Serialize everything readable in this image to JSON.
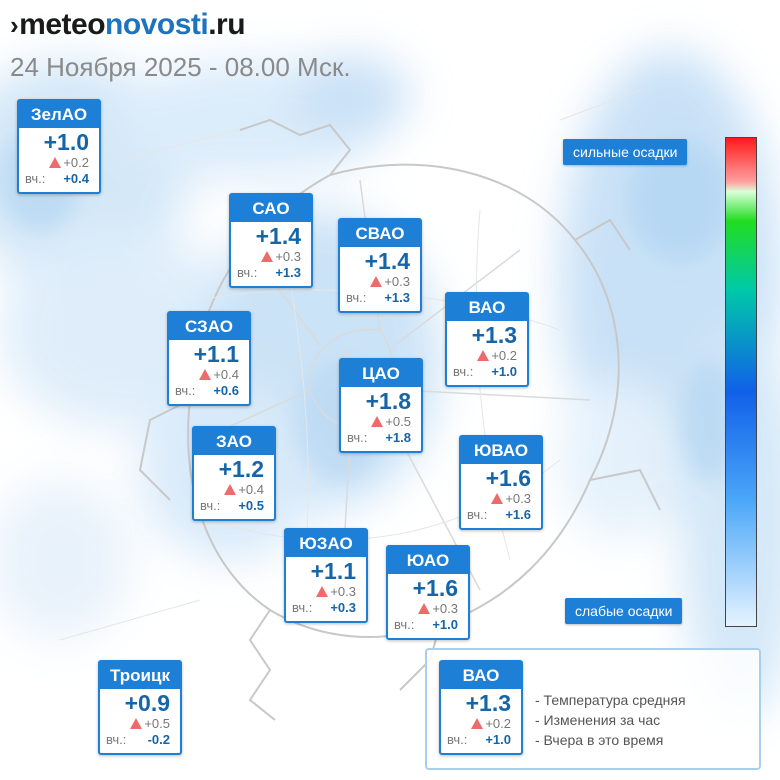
{
  "header": {
    "logo_part1": "meteo",
    "logo_part2": "novosti",
    "logo_part3": ".ru",
    "subtitle": "24 Ноября 2025 - 08.00 Мск."
  },
  "districts": [
    {
      "id": "zelao",
      "name": "ЗелАО",
      "temp": "+1.0",
      "change": "+0.2",
      "yesterday_label": "вч.:",
      "yesterday": "+0.4"
    },
    {
      "id": "sao",
      "name": "САО",
      "temp": "+1.4",
      "change": "+0.3",
      "yesterday_label": "вч.:",
      "yesterday": "+1.3"
    },
    {
      "id": "svao",
      "name": "СВАО",
      "temp": "+1.4",
      "change": "+0.3",
      "yesterday_label": "вч.:",
      "yesterday": "+1.3"
    },
    {
      "id": "vao",
      "name": "ВАО",
      "temp": "+1.3",
      "change": "+0.2",
      "yesterday_label": "вч.:",
      "yesterday": "+1.0"
    },
    {
      "id": "szao",
      "name": "СЗАО",
      "temp": "+1.1",
      "change": "+0.4",
      "yesterday_label": "вч.:",
      "yesterday": "+0.6"
    },
    {
      "id": "cao",
      "name": "ЦАО",
      "temp": "+1.8",
      "change": "+0.5",
      "yesterday_label": "вч.:",
      "yesterday": "+1.8"
    },
    {
      "id": "zao",
      "name": "ЗАО",
      "temp": "+1.2",
      "change": "+0.4",
      "yesterday_label": "вч.:",
      "yesterday": "+0.5"
    },
    {
      "id": "yuvao",
      "name": "ЮВАО",
      "temp": "+1.6",
      "change": "+0.3",
      "yesterday_label": "вч.:",
      "yesterday": "+1.6"
    },
    {
      "id": "yuzao",
      "name": "ЮЗАО",
      "temp": "+1.1",
      "change": "+0.3",
      "yesterday_label": "вч.:",
      "yesterday": "+0.3"
    },
    {
      "id": "yuao",
      "name": "ЮАО",
      "temp": "+1.6",
      "change": "+0.3",
      "yesterday_label": "вч.:",
      "yesterday": "+1.0"
    },
    {
      "id": "troitsk",
      "name": "Троицк",
      "temp": "+0.9",
      "change": "+0.5",
      "yesterday_label": "вч.:",
      "yesterday": "-0.2"
    }
  ],
  "legend": {
    "sample": {
      "name": "ВАО",
      "temp": "+1.3",
      "change": "+0.2",
      "yesterday_label": "вч.:",
      "yesterday": "+1.0"
    },
    "lines": [
      "- Температура средняя",
      "- Изменения за час",
      "- Вчера в это время"
    ]
  },
  "precip_scale": {
    "top_label": "сильные осадки",
    "bottom_label": "слабые осадки",
    "colors": [
      "#ff1a1a",
      "#22dd22",
      "#1160e8",
      "#e6f3ff"
    ]
  }
}
